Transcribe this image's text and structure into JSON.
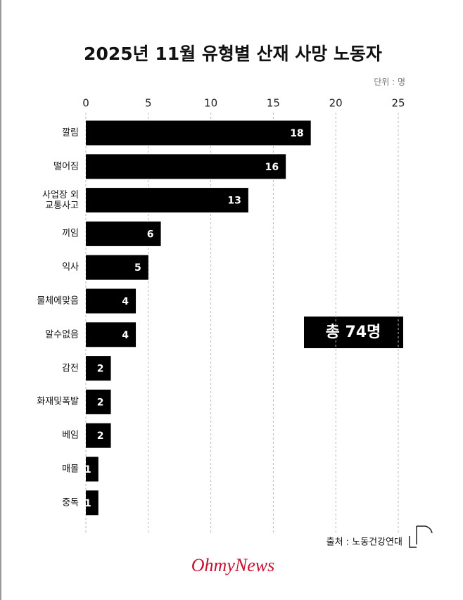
{
  "chart_data": {
    "type": "bar",
    "orientation": "horizontal",
    "title": "2025년 11월 유형별 산재 사망 노동자",
    "unit_note": "단위 : 명",
    "categories": [
      "깔림",
      "떨어짐",
      "사업장 외 교통사고",
      "끼임",
      "익사",
      "물체에맞음",
      "알수없음",
      "감전",
      "화재및폭발",
      "베임",
      "매몰",
      "중독"
    ],
    "values": [
      18,
      16,
      13,
      6,
      5,
      4,
      4,
      2,
      2,
      2,
      1,
      1
    ],
    "color": "#000000",
    "xlim": [
      0,
      25
    ],
    "xticks": [
      0,
      5,
      10,
      15,
      20,
      25
    ],
    "grid": true,
    "total_label": "총 74명",
    "source": "출처 : 노동건강연대",
    "logo": "OhmyNews"
  }
}
